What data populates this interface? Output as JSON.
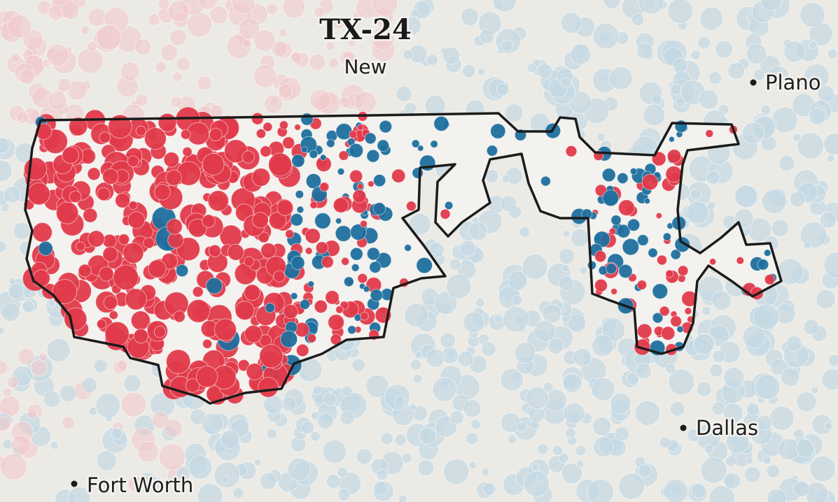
{
  "header": {
    "title": "TX-24",
    "subtitle": "New"
  },
  "cities": [
    {
      "label": "Plano"
    },
    {
      "label": "Dallas"
    },
    {
      "label": "Fort Worth"
    }
  ]
}
